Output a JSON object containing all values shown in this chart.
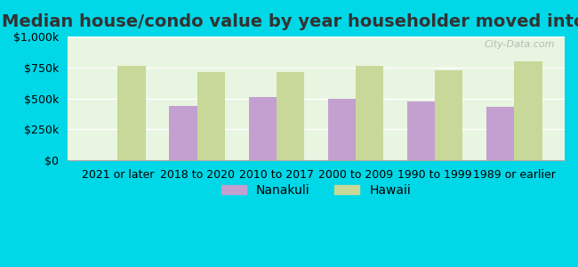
{
  "title": "Median house/condo value by year householder moved into unit",
  "categories": [
    "2021 or later",
    "2018 to 2020",
    "2010 to 2017",
    "2000 to 2009",
    "1990 to 1999",
    "1989 or earlier"
  ],
  "nanakuli_values": [
    0,
    440000,
    510000,
    500000,
    475000,
    430000
  ],
  "hawaii_values": [
    760000,
    710000,
    710000,
    760000,
    730000,
    800000
  ],
  "nanakuli_color": "#c4a0d0",
  "hawaii_color": "#c8d898",
  "background_outer": "#00d8e8",
  "background_inner": "#e8f5e0",
  "ylim": [
    0,
    1000000
  ],
  "yticks": [
    0,
    250000,
    500000,
    750000,
    1000000
  ],
  "ytick_labels": [
    "$0",
    "$250k",
    "$500k",
    "$750k",
    "$1,000k"
  ],
  "legend_nanakuli": "Nanakuli",
  "legend_hawaii": "Hawaii",
  "watermark": "City-Data.com",
  "bar_width": 0.35,
  "title_fontsize": 14,
  "tick_fontsize": 9,
  "legend_fontsize": 10
}
